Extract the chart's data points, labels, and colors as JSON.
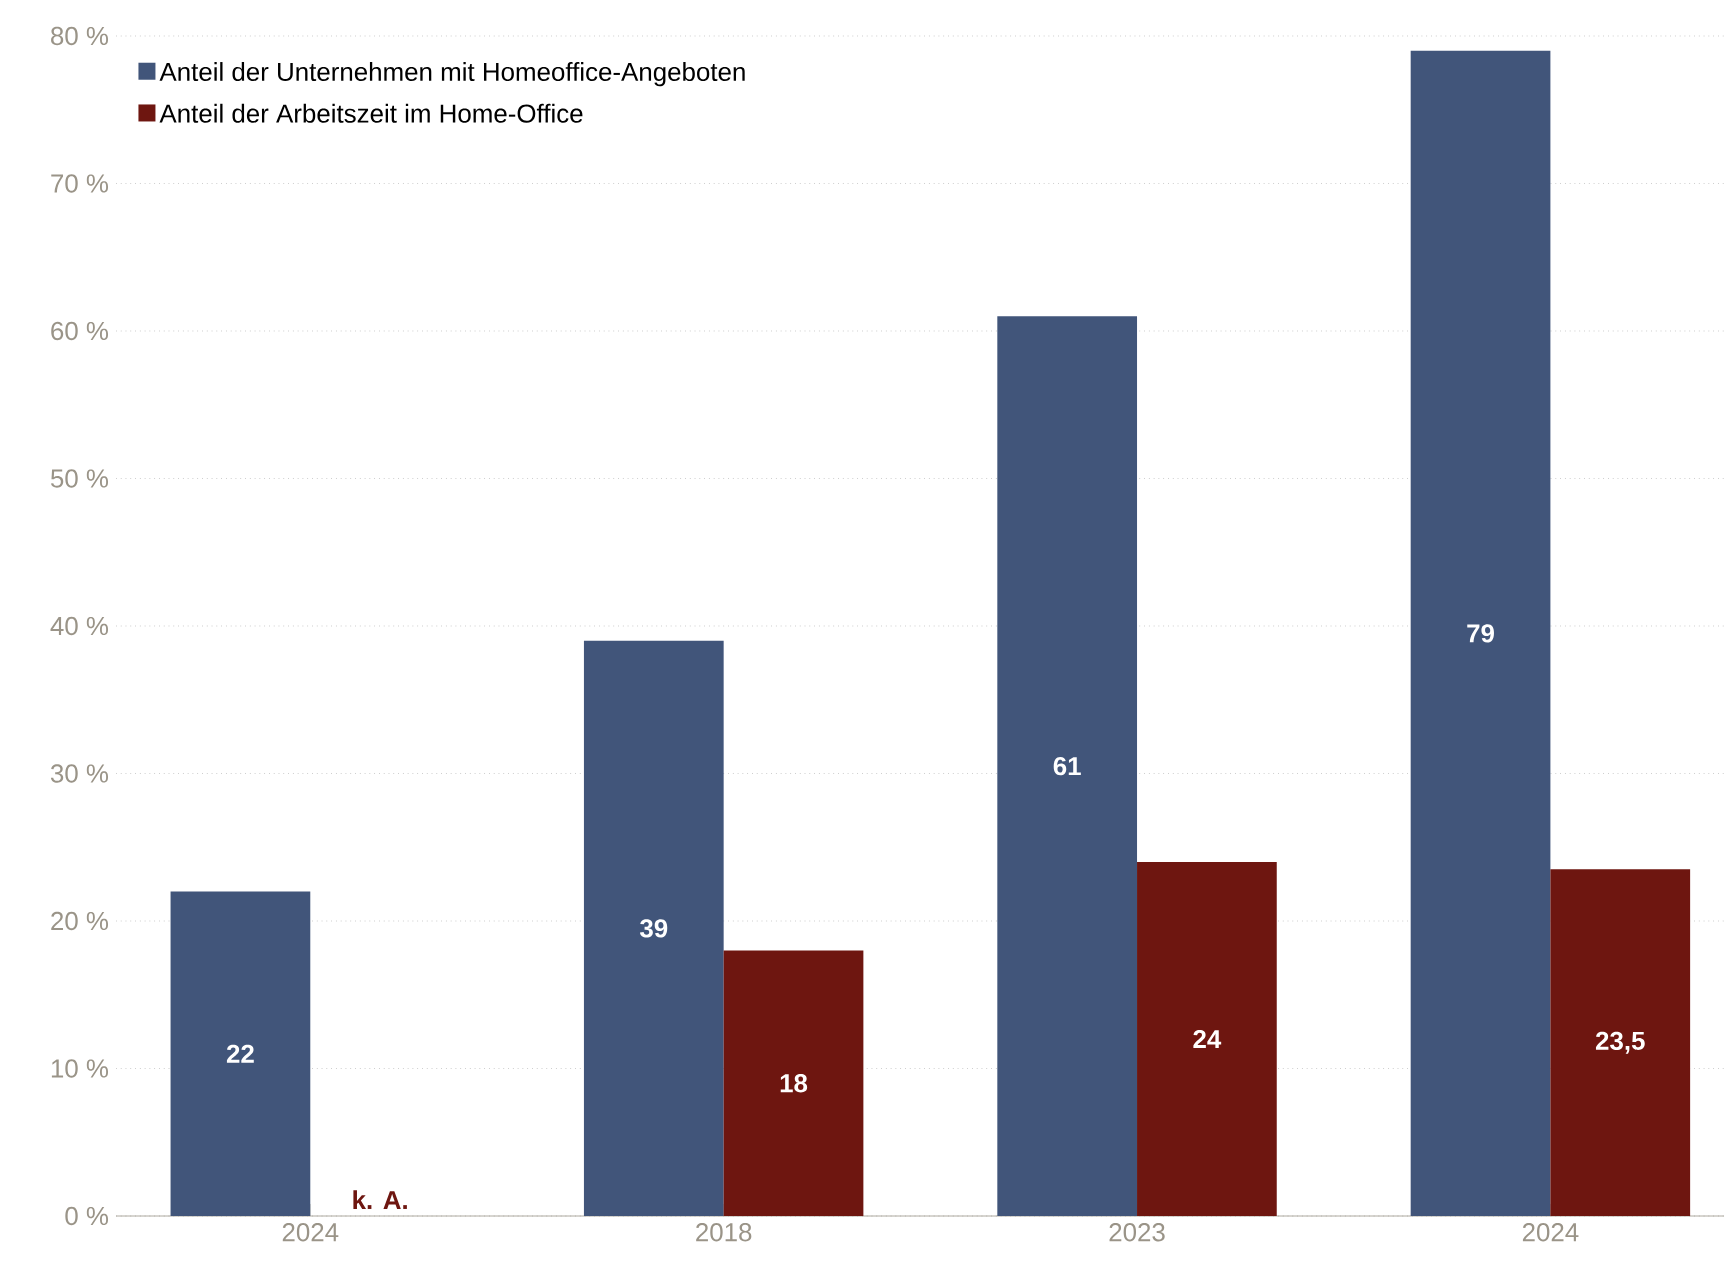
{
  "chart_data": {
    "type": "bar",
    "categories": [
      "2024",
      "2018",
      "2023",
      "2024"
    ],
    "series": [
      {
        "name": "Anteil der Unternehmen mit Homeoffice-Angeboten",
        "color": "#41557a",
        "values": [
          22,
          39,
          61,
          79
        ],
        "value_labels": [
          "22",
          "39",
          "61",
          "79"
        ]
      },
      {
        "name": "Anteil der Arbeitszeit im Home-Office",
        "color": "#6e1610",
        "values": [
          null,
          18,
          24,
          23.5
        ],
        "value_labels": [
          "k. A.",
          "18",
          "24",
          "23,5"
        ]
      }
    ],
    "ylim": [
      0,
      80
    ],
    "yticks": [
      {
        "value": 0,
        "label": "0 %"
      },
      {
        "value": 10,
        "label": "10 %"
      },
      {
        "value": 20,
        "label": "20 %"
      },
      {
        "value": 30,
        "label": "30 %"
      },
      {
        "value": 40,
        "label": "40 %"
      },
      {
        "value": 50,
        "label": "50 %"
      },
      {
        "value": 60,
        "label": "60 %"
      },
      {
        "value": 70,
        "label": "70 %"
      },
      {
        "value": 80,
        "label": "80 %"
      }
    ],
    "grid": "y",
    "legend": "top left"
  }
}
